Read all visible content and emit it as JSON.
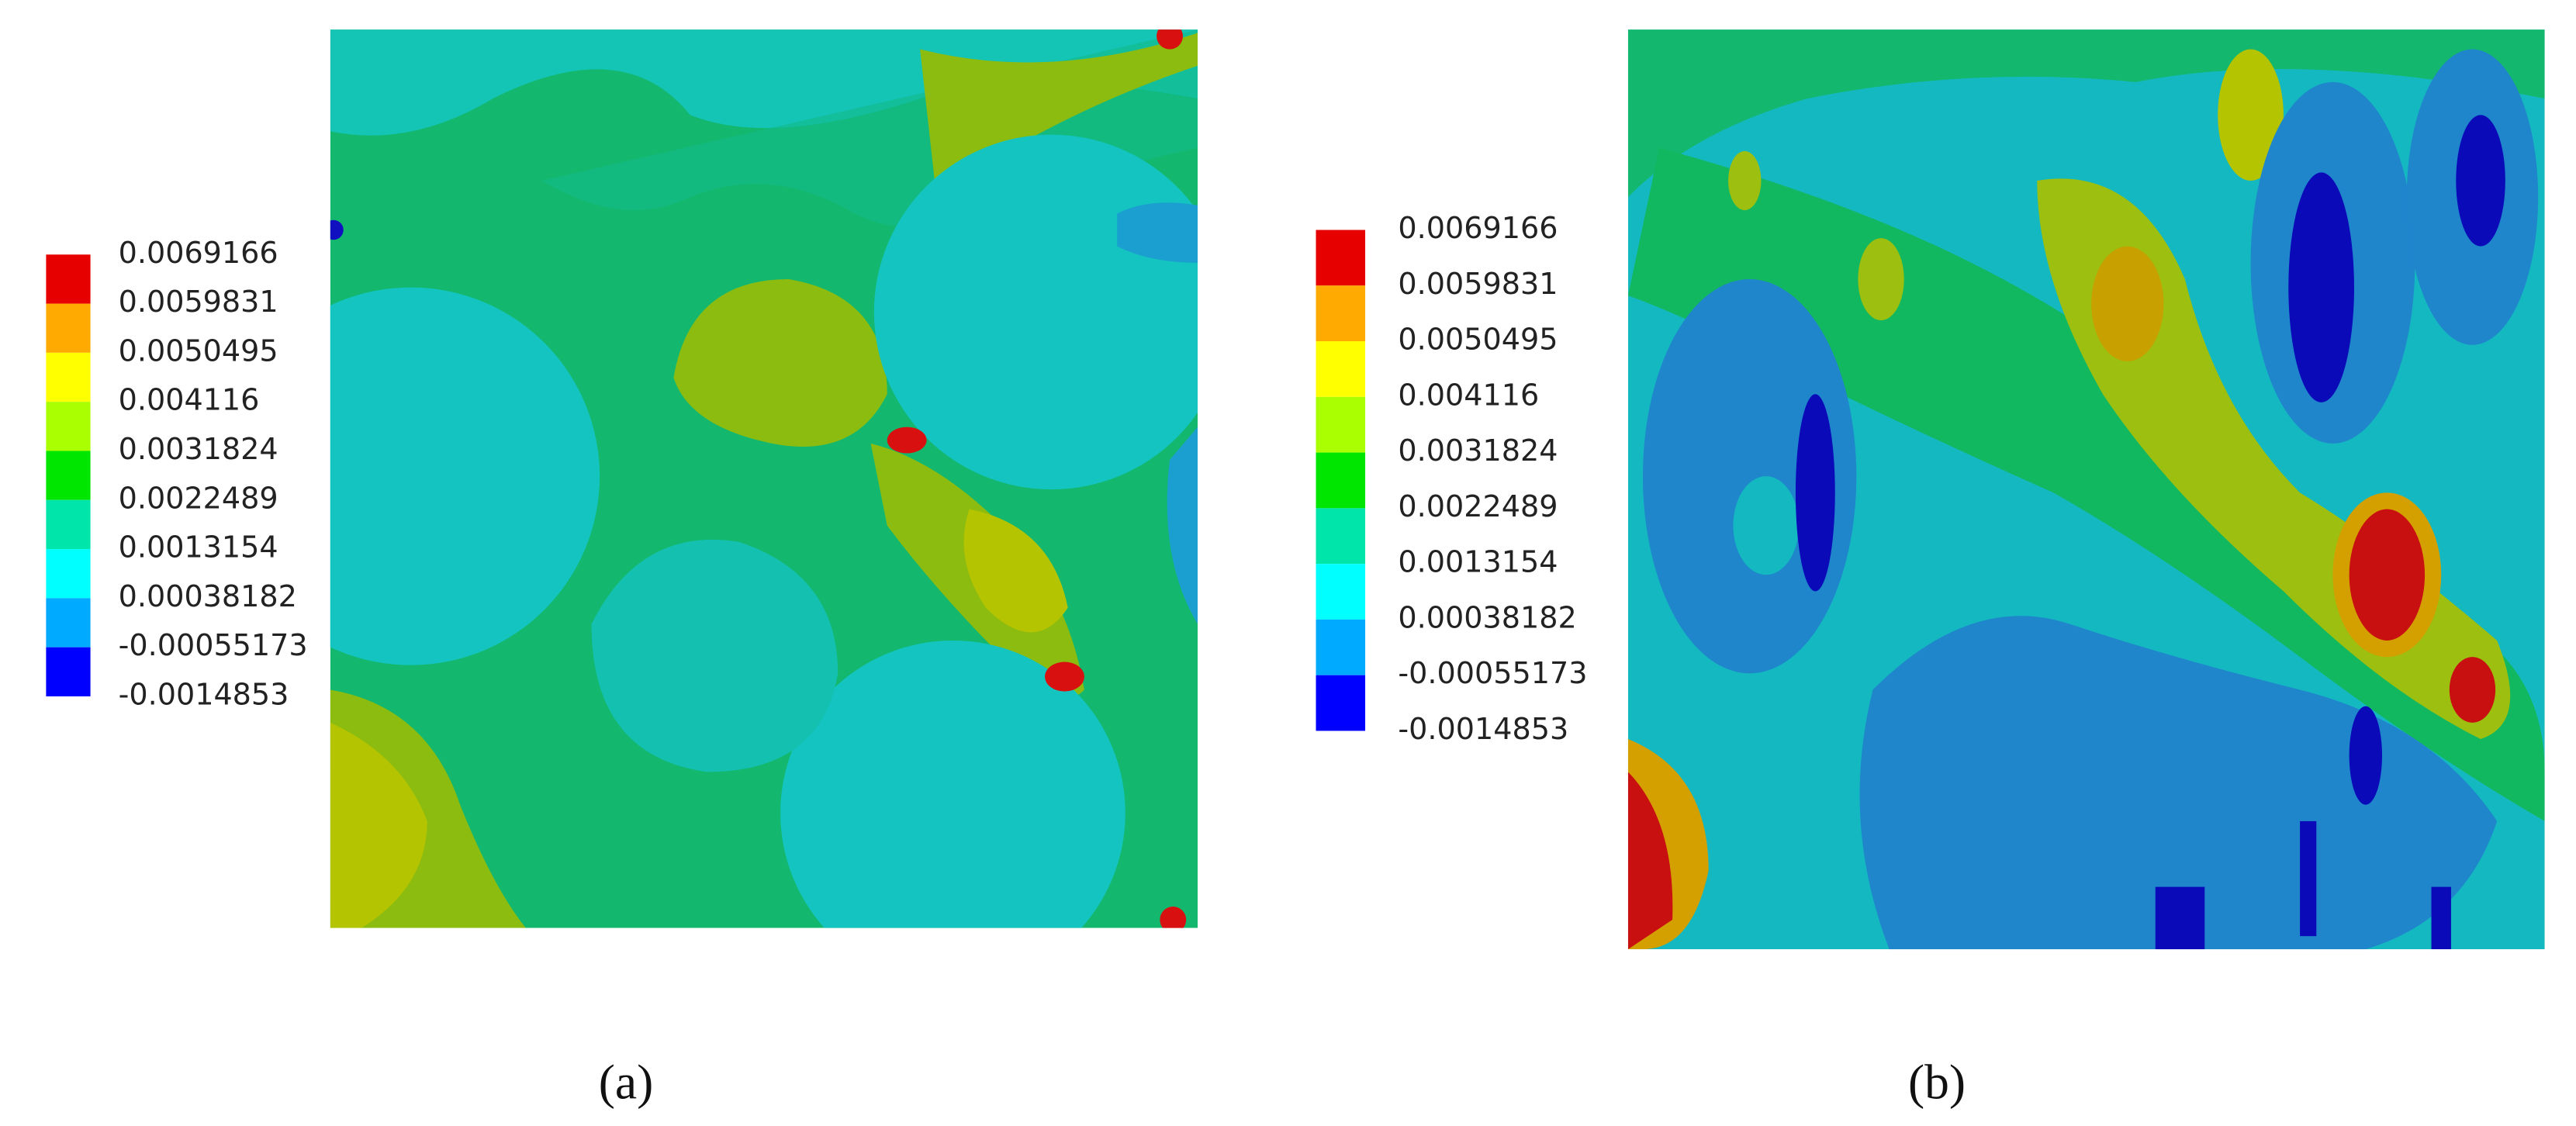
{
  "panels": [
    {
      "legend": {
        "labels": [
          "0.0069166",
          "0.0059831",
          "0.0050495",
          "0.004116",
          "0.0031824",
          "0.0022489",
          "0.0013154",
          "0.00038182",
          "-0.00055173",
          "-0.0014853"
        ]
      },
      "caption": "(a)"
    },
    {
      "legend": {
        "labels": [
          "0.0069166",
          "0.0059831",
          "0.0050495",
          "0.004116",
          "0.0031824",
          "0.0022489",
          "0.0013154",
          "0.00038182",
          "-0.00055173",
          "-0.0014853"
        ]
      },
      "caption": "(b)"
    }
  ]
}
